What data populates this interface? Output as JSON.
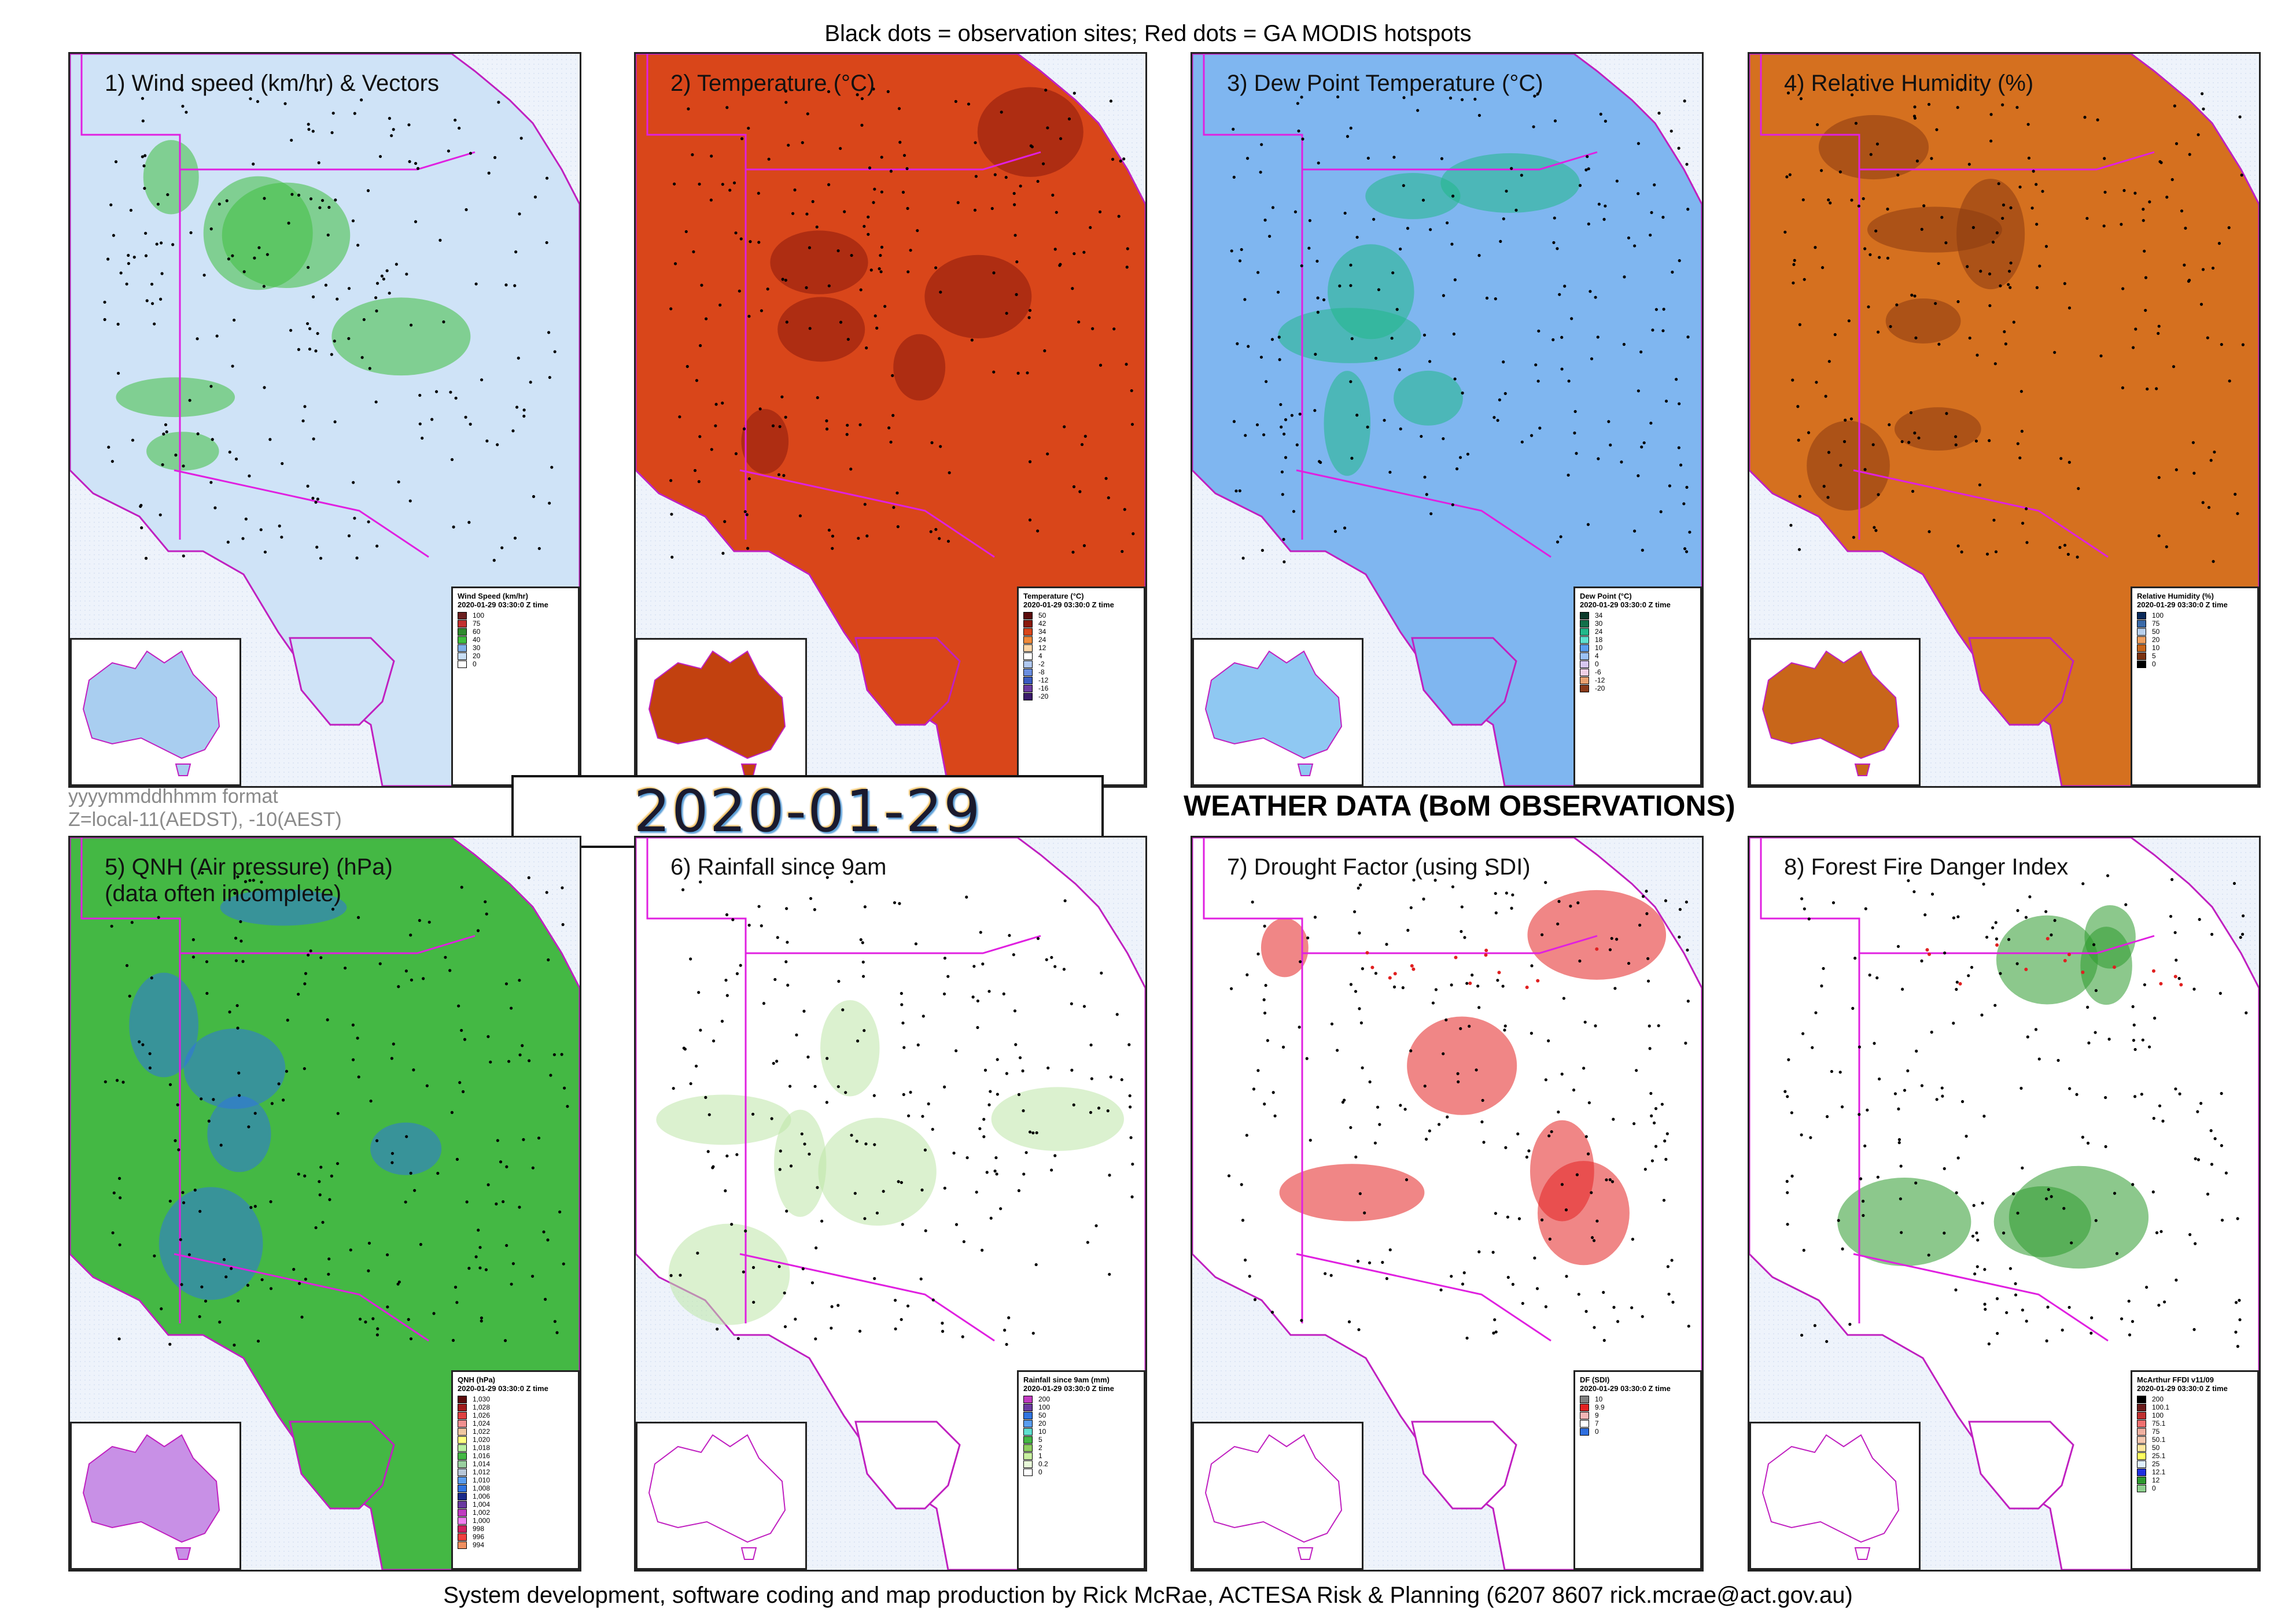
{
  "header": {
    "caption": "Black dots = observation sites; Red dots = GA MODIS hotspots"
  },
  "footer": {
    "caption": "System development, software coding and map production by Rick McRae, ACTESA Risk & Planning (6207 8607 rick.mcrae@act.gov.au)"
  },
  "format_note": {
    "line1": "yyyymmddhhmm format",
    "line2": "Z=local-11(AEDST), -10(AEST)"
  },
  "timestamp": "2020-01-29 03:30:0",
  "main_title": "WEATHER DATA (BoM OBSERVATIONS)",
  "panels": [
    {
      "title": "1) Wind speed (km/hr) & Vectors",
      "fill": "#cfe3f7",
      "accent": "#3fbf3f",
      "inset_fill": "#a9cef0",
      "legend": {
        "name": "Wind Speed (km/hr)",
        "time": "2020-01-29 03:30:0 Z time",
        "items": [
          {
            "label": "100",
            "color": "#6b1f1f"
          },
          {
            "label": "75",
            "color": "#c23030"
          },
          {
            "label": "60",
            "color": "#2e8b2e"
          },
          {
            "label": "40",
            "color": "#3fbf3f"
          },
          {
            "label": "30",
            "color": "#7fb0e8"
          },
          {
            "label": "20",
            "color": "#c9dff5"
          },
          {
            "label": "0",
            "color": "#ffffff"
          }
        ]
      }
    },
    {
      "title": "2) Temperature (°C)",
      "fill": "#d9461a",
      "accent": "#8a1a0c",
      "inset_fill": "#c2410f",
      "legend": {
        "name": "Temperature (°C)",
        "time": "2020-01-29 03:30:0 Z time",
        "items": [
          {
            "label": "50",
            "color": "#5a0a0a"
          },
          {
            "label": "42",
            "color": "#8a1a0c"
          },
          {
            "label": "34",
            "color": "#d9461a"
          },
          {
            "label": "24",
            "color": "#f08a3a"
          },
          {
            "label": "12",
            "color": "#fbd6a8"
          },
          {
            "label": "4",
            "color": "#ffffff"
          },
          {
            "label": "-2",
            "color": "#b0c8f0"
          },
          {
            "label": "-8",
            "color": "#6a8ee0"
          },
          {
            "label": "-12",
            "color": "#3a5ac0"
          },
          {
            "label": "-16",
            "color": "#6a3aa0"
          },
          {
            "label": "-20",
            "color": "#3a1a6a"
          }
        ]
      }
    },
    {
      "title": "3) Dew Point Temperature (°C)",
      "fill": "#7fb6f0",
      "accent": "#22b88a",
      "inset_fill": "#8fc8f2",
      "legend": {
        "name": "Dew Point (°C)",
        "time": "2020-01-29 03:30:0 Z time",
        "items": [
          {
            "label": "34",
            "color": "#0a3a2a"
          },
          {
            "label": "30",
            "color": "#12704a"
          },
          {
            "label": "24",
            "color": "#22b88a"
          },
          {
            "label": "18",
            "color": "#5fe0d0"
          },
          {
            "label": "10",
            "color": "#5a9ef0"
          },
          {
            "label": "4",
            "color": "#9cc2f5"
          },
          {
            "label": "0",
            "color": "#d7c7f0"
          },
          {
            "label": "-6",
            "color": "#f0d0e6"
          },
          {
            "label": "-12",
            "color": "#e8a070"
          },
          {
            "label": "-20",
            "color": "#8a3a1a"
          }
        ]
      }
    },
    {
      "title": "4) Relative Humidity (%)",
      "fill": "#d5701f",
      "accent": "#8a3a10",
      "inset_fill": "#c8661a",
      "legend": {
        "name": "Relative Humidity (%)",
        "time": "2020-01-29 03:30:0 Z time",
        "items": [
          {
            "label": "100",
            "color": "#0a2a5a"
          },
          {
            "label": "75",
            "color": "#3a6aa8"
          },
          {
            "label": "50",
            "color": "#b8d0ec"
          },
          {
            "label": "20",
            "color": "#f0a060"
          },
          {
            "label": "10",
            "color": "#c8661a"
          },
          {
            "label": "5",
            "color": "#7a3210"
          },
          {
            "label": "0",
            "color": "#000000"
          }
        ]
      }
    },
    {
      "title": "5) QNH (Air pressure) (hPa)\n(data often incomplete)",
      "fill": "#44b844",
      "accent": "#2f74e0",
      "inset_fill": "#c890e6",
      "legend": {
        "name": "QNH (hPa)",
        "time": "2020-01-29 03:30:0 Z time",
        "items": [
          {
            "label": "1,030",
            "color": "#5a0a0a"
          },
          {
            "label": "1,028",
            "color": "#a01a1a"
          },
          {
            "label": "1,026",
            "color": "#e04040"
          },
          {
            "label": "1,024",
            "color": "#f09090"
          },
          {
            "label": "1,022",
            "color": "#f0c8a0"
          },
          {
            "label": "1,020",
            "color": "#ffff80"
          },
          {
            "label": "1,018",
            "color": "#b8f0a0"
          },
          {
            "label": "1,016",
            "color": "#44b844"
          },
          {
            "label": "1,014",
            "color": "#9ad0a0"
          },
          {
            "label": "1,012",
            "color": "#b8c8d8"
          },
          {
            "label": "1,010",
            "color": "#5a9ef0"
          },
          {
            "label": "1,008",
            "color": "#2f74e0"
          },
          {
            "label": "1,006",
            "color": "#1a2a8a"
          },
          {
            "label": "1,004",
            "color": "#6a3aa0"
          },
          {
            "label": "1,002",
            "color": "#c03ac0"
          },
          {
            "label": "1,000",
            "color": "#f080f0"
          },
          {
            "label": "998",
            "color": "#d02060"
          },
          {
            "label": "996",
            "color": "#f04040"
          },
          {
            "label": "994",
            "color": "#f09060"
          }
        ]
      }
    },
    {
      "title": "6) Rainfall since 9am",
      "fill": "#ffffff",
      "accent": "#bde6a8",
      "inset_fill": "#ffffff",
      "legend": {
        "name": "Rainfall since 9am (mm)",
        "time": "2020-01-29 03:30:0 Z time",
        "items": [
          {
            "label": "200",
            "color": "#c03ac0"
          },
          {
            "label": "100",
            "color": "#6a3aa0"
          },
          {
            "label": "50",
            "color": "#2f74e0"
          },
          {
            "label": "20",
            "color": "#5a9ef0"
          },
          {
            "label": "10",
            "color": "#5fe0d0"
          },
          {
            "label": "5",
            "color": "#44b844"
          },
          {
            "label": "2",
            "color": "#8ed060"
          },
          {
            "label": "1",
            "color": "#c8f0a0"
          },
          {
            "label": "0.2",
            "color": "#e8f8d8"
          },
          {
            "label": "0",
            "color": "#ffffff"
          }
        ]
      }
    },
    {
      "title": "7) Drought Factor (using SDI)",
      "fill": "#ffffff",
      "accent": "#e32222",
      "inset_fill": "#ffffff",
      "legend": {
        "name": "DF (SDI)",
        "time": "2020-01-29 03:30:0 Z time",
        "items": [
          {
            "label": "10",
            "color": "#808080"
          },
          {
            "label": "9.9",
            "color": "#e32222"
          },
          {
            "label": "9",
            "color": "#f3b6b6"
          },
          {
            "label": "7",
            "color": "#ffffff"
          },
          {
            "label": "0",
            "color": "#2f6fe0"
          }
        ]
      }
    },
    {
      "title": "8) Forest Fire Danger Index",
      "fill": "#ffffff",
      "accent": "#2e9a2e",
      "inset_fill": "#ffffff",
      "legend": {
        "name": "McArthur FFDI v11/09",
        "time": "2020-01-29 03:30:0 Z time",
        "items": [
          {
            "label": "200",
            "color": "#000000"
          },
          {
            "label": "100.1",
            "color": "#6a1a1a"
          },
          {
            "label": "100",
            "color": "#c03030"
          },
          {
            "label": "75.1",
            "color": "#f07070"
          },
          {
            "label": "75",
            "color": "#f0b0a0"
          },
          {
            "label": "50.1",
            "color": "#f5c8b0"
          },
          {
            "label": "50",
            "color": "#ffe8a0"
          },
          {
            "label": "25.1",
            "color": "#ffff60"
          },
          {
            "label": "25",
            "color": "#e0f0ff"
          },
          {
            "label": "12.1",
            "color": "#2030e0"
          },
          {
            "label": "12",
            "color": "#2e9a2e"
          },
          {
            "label": "0",
            "color": "#8ed08e"
          }
        ]
      }
    }
  ]
}
